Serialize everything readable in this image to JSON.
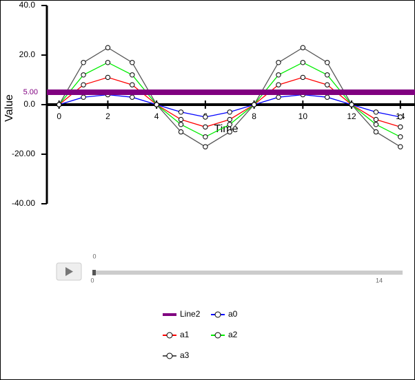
{
  "chart_data": {
    "type": "line",
    "x_label": "Time",
    "y_label": "Value",
    "x": [
      0,
      1,
      2,
      3,
      4,
      5,
      6,
      7,
      8,
      9,
      10,
      11,
      12,
      13,
      14
    ],
    "series": [
      {
        "name": "a0",
        "color": "#0000ff",
        "values": [
          0,
          3,
          4,
          3,
          0,
          -3,
          -5,
          -3,
          0,
          3,
          4,
          3,
          0,
          -3,
          -5
        ]
      },
      {
        "name": "a1",
        "color": "#ff0000",
        "values": [
          0,
          8,
          11,
          8,
          0,
          -6,
          -9,
          -6,
          0,
          8,
          11,
          8,
          0,
          -6,
          -9
        ]
      },
      {
        "name": "a2",
        "color": "#00ee00",
        "values": [
          0,
          12,
          17,
          12,
          0,
          -8,
          -13,
          -8,
          0,
          12,
          17,
          12,
          0,
          -8,
          -13
        ]
      },
      {
        "name": "a3",
        "color": "#555555",
        "values": [
          0,
          17,
          23,
          17,
          0,
          -11,
          -17,
          -11,
          0,
          17,
          23,
          17,
          0,
          -11,
          -17
        ]
      }
    ],
    "reference_line": {
      "name": "Line2",
      "color": "#800080",
      "value": 5,
      "value_label": "5.00"
    },
    "xlim": [
      -0.5,
      14.6
    ],
    "xticks": [
      0,
      2,
      4,
      6,
      8,
      10,
      12,
      14
    ],
    "ylim": [
      -40,
      40
    ],
    "yticks": [
      {
        "value": 40,
        "label": "40.0"
      },
      {
        "value": 20,
        "label": "20.0"
      },
      {
        "value": 0,
        "label": "0.0"
      },
      {
        "value": -20,
        "label": "-20.00"
      },
      {
        "value": -40,
        "label": "-40.00"
      }
    ],
    "slider": {
      "value": 0,
      "min": 0,
      "max": 14
    }
  }
}
